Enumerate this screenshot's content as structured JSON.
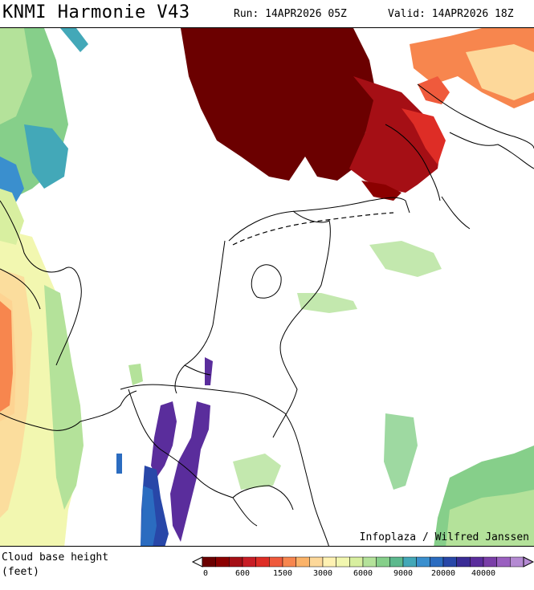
{
  "header": {
    "title": "KNMI Harmonie V43",
    "run": "Run: 14APR2026 05Z",
    "valid": "Valid: 14APR2026 18Z"
  },
  "map": {
    "credit": "Infoplaza / Wilfred Janssen"
  },
  "legend": {
    "label_line1": "Cloud base height",
    "label_line2": "(feet)",
    "tick_labels": [
      "0",
      "600",
      "1500",
      "3000",
      "6000",
      "9000",
      "20000",
      "40000"
    ],
    "colors": [
      "#6b0000",
      "#8b0000",
      "#a50f15",
      "#c81d25",
      "#de2d26",
      "#ef5a3c",
      "#f7864e",
      "#fbb369",
      "#fdd89a",
      "#fff2b3",
      "#f2f7b0",
      "#d8efa0",
      "#b4e29a",
      "#86cf8a",
      "#5cb98d",
      "#43a8b8",
      "#3a8fce",
      "#2b6cc0",
      "#2847a8",
      "#3a2c96",
      "#5a2d9c",
      "#7a3ea8",
      "#9a60c0",
      "#b48ad2"
    ]
  }
}
